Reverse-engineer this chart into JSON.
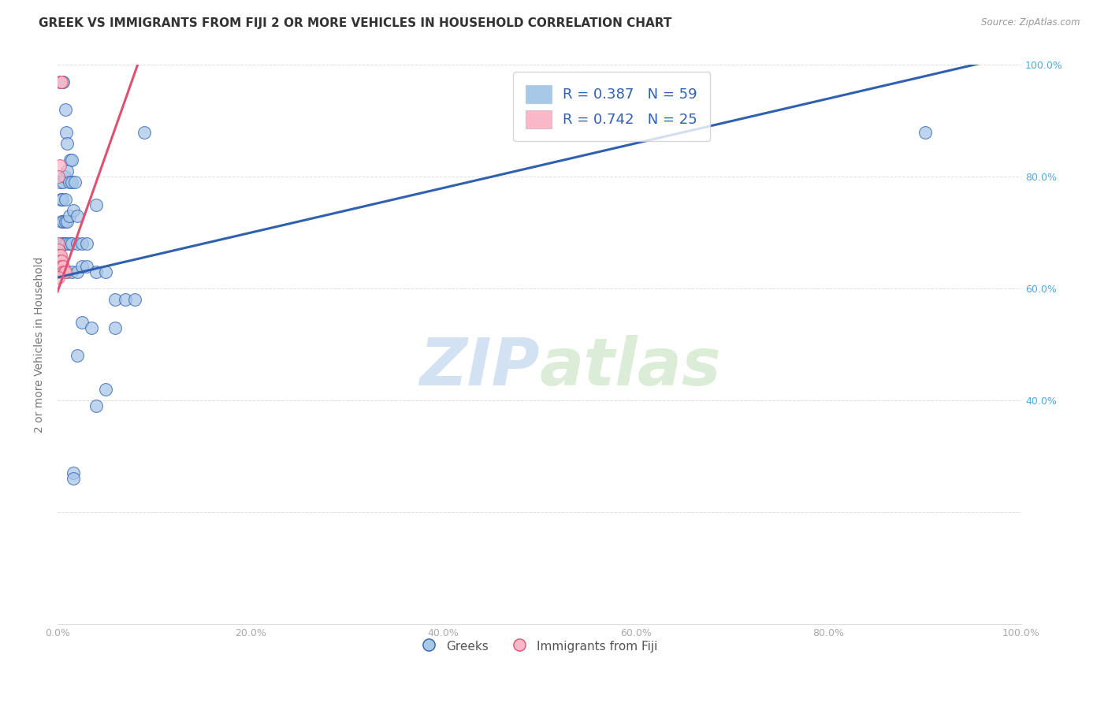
{
  "title": "GREEK VS IMMIGRANTS FROM FIJI 2 OR MORE VEHICLES IN HOUSEHOLD CORRELATION CHART",
  "source": "Source: ZipAtlas.com",
  "ylabel": "2 or more Vehicles in Household",
  "xlim": [
    0,
    1
  ],
  "ylim": [
    0,
    1
  ],
  "blue_color": "#a8c8e8",
  "blue_line_color": "#3060b0",
  "pink_color": "#f8b8c8",
  "pink_line_color": "#e05070",
  "legend_text_color": "#3060b0",
  "legend_r_blue": "R = 0.387",
  "legend_n_blue": "N = 59",
  "legend_r_pink": "R = 0.742",
  "legend_n_pink": "N = 25",
  "watermark": "ZIPatlas",
  "blue_line_x": [
    0.0,
    1.0
  ],
  "blue_line_y": [
    0.62,
    1.02
  ],
  "pink_line_x": [
    0.0,
    0.085
  ],
  "pink_line_y": [
    0.595,
    1.01
  ],
  "greek_points": [
    [
      0.002,
      0.97
    ],
    [
      0.004,
      0.97
    ],
    [
      0.005,
      0.97
    ],
    [
      0.006,
      0.97
    ],
    [
      0.008,
      0.92
    ],
    [
      0.009,
      0.88
    ],
    [
      0.01,
      0.86
    ],
    [
      0.013,
      0.83
    ],
    [
      0.015,
      0.83
    ],
    [
      0.002,
      0.79
    ],
    [
      0.006,
      0.79
    ],
    [
      0.007,
      0.8
    ],
    [
      0.01,
      0.81
    ],
    [
      0.012,
      0.79
    ],
    [
      0.015,
      0.79
    ],
    [
      0.018,
      0.79
    ],
    [
      0.003,
      0.76
    ],
    [
      0.005,
      0.76
    ],
    [
      0.008,
      0.76
    ],
    [
      0.004,
      0.72
    ],
    [
      0.006,
      0.72
    ],
    [
      0.008,
      0.72
    ],
    [
      0.01,
      0.72
    ],
    [
      0.012,
      0.73
    ],
    [
      0.016,
      0.74
    ],
    [
      0.02,
      0.73
    ],
    [
      0.003,
      0.68
    ],
    [
      0.005,
      0.68
    ],
    [
      0.007,
      0.68
    ],
    [
      0.009,
      0.68
    ],
    [
      0.012,
      0.68
    ],
    [
      0.015,
      0.68
    ],
    [
      0.02,
      0.68
    ],
    [
      0.025,
      0.68
    ],
    [
      0.03,
      0.68
    ],
    [
      0.04,
      0.75
    ],
    [
      0.003,
      0.64
    ],
    [
      0.005,
      0.63
    ],
    [
      0.007,
      0.63
    ],
    [
      0.01,
      0.63
    ],
    [
      0.015,
      0.63
    ],
    [
      0.02,
      0.63
    ],
    [
      0.025,
      0.64
    ],
    [
      0.03,
      0.64
    ],
    [
      0.04,
      0.63
    ],
    [
      0.05,
      0.63
    ],
    [
      0.06,
      0.58
    ],
    [
      0.07,
      0.58
    ],
    [
      0.08,
      0.58
    ],
    [
      0.025,
      0.54
    ],
    [
      0.035,
      0.53
    ],
    [
      0.06,
      0.53
    ],
    [
      0.02,
      0.48
    ],
    [
      0.05,
      0.42
    ],
    [
      0.04,
      0.39
    ],
    [
      0.016,
      0.27
    ],
    [
      0.016,
      0.26
    ],
    [
      0.09,
      0.88
    ],
    [
      0.9,
      0.88
    ]
  ],
  "fiji_points": [
    [
      0.002,
      0.82
    ],
    [
      0.003,
      0.97
    ],
    [
      0.004,
      0.97
    ],
    [
      0.001,
      0.8
    ],
    [
      0.001,
      0.68
    ],
    [
      0.001,
      0.67
    ],
    [
      0.001,
      0.66
    ],
    [
      0.001,
      0.65
    ],
    [
      0.002,
      0.66
    ],
    [
      0.002,
      0.65
    ],
    [
      0.002,
      0.64
    ],
    [
      0.003,
      0.66
    ],
    [
      0.003,
      0.65
    ],
    [
      0.003,
      0.64
    ],
    [
      0.003,
      0.63
    ],
    [
      0.004,
      0.65
    ],
    [
      0.004,
      0.64
    ],
    [
      0.004,
      0.63
    ],
    [
      0.005,
      0.64
    ],
    [
      0.005,
      0.63
    ],
    [
      0.006,
      0.64
    ],
    [
      0.006,
      0.63
    ],
    [
      0.007,
      0.63
    ],
    [
      0.008,
      0.63
    ],
    [
      0.001,
      0.62
    ]
  ],
  "title_fontsize": 11,
  "axis_fontsize": 10,
  "tick_fontsize": 9,
  "right_tick_color": "#4fa8e8",
  "grid_color": "#dddddd",
  "tick_label_color": "#aaaaaa"
}
